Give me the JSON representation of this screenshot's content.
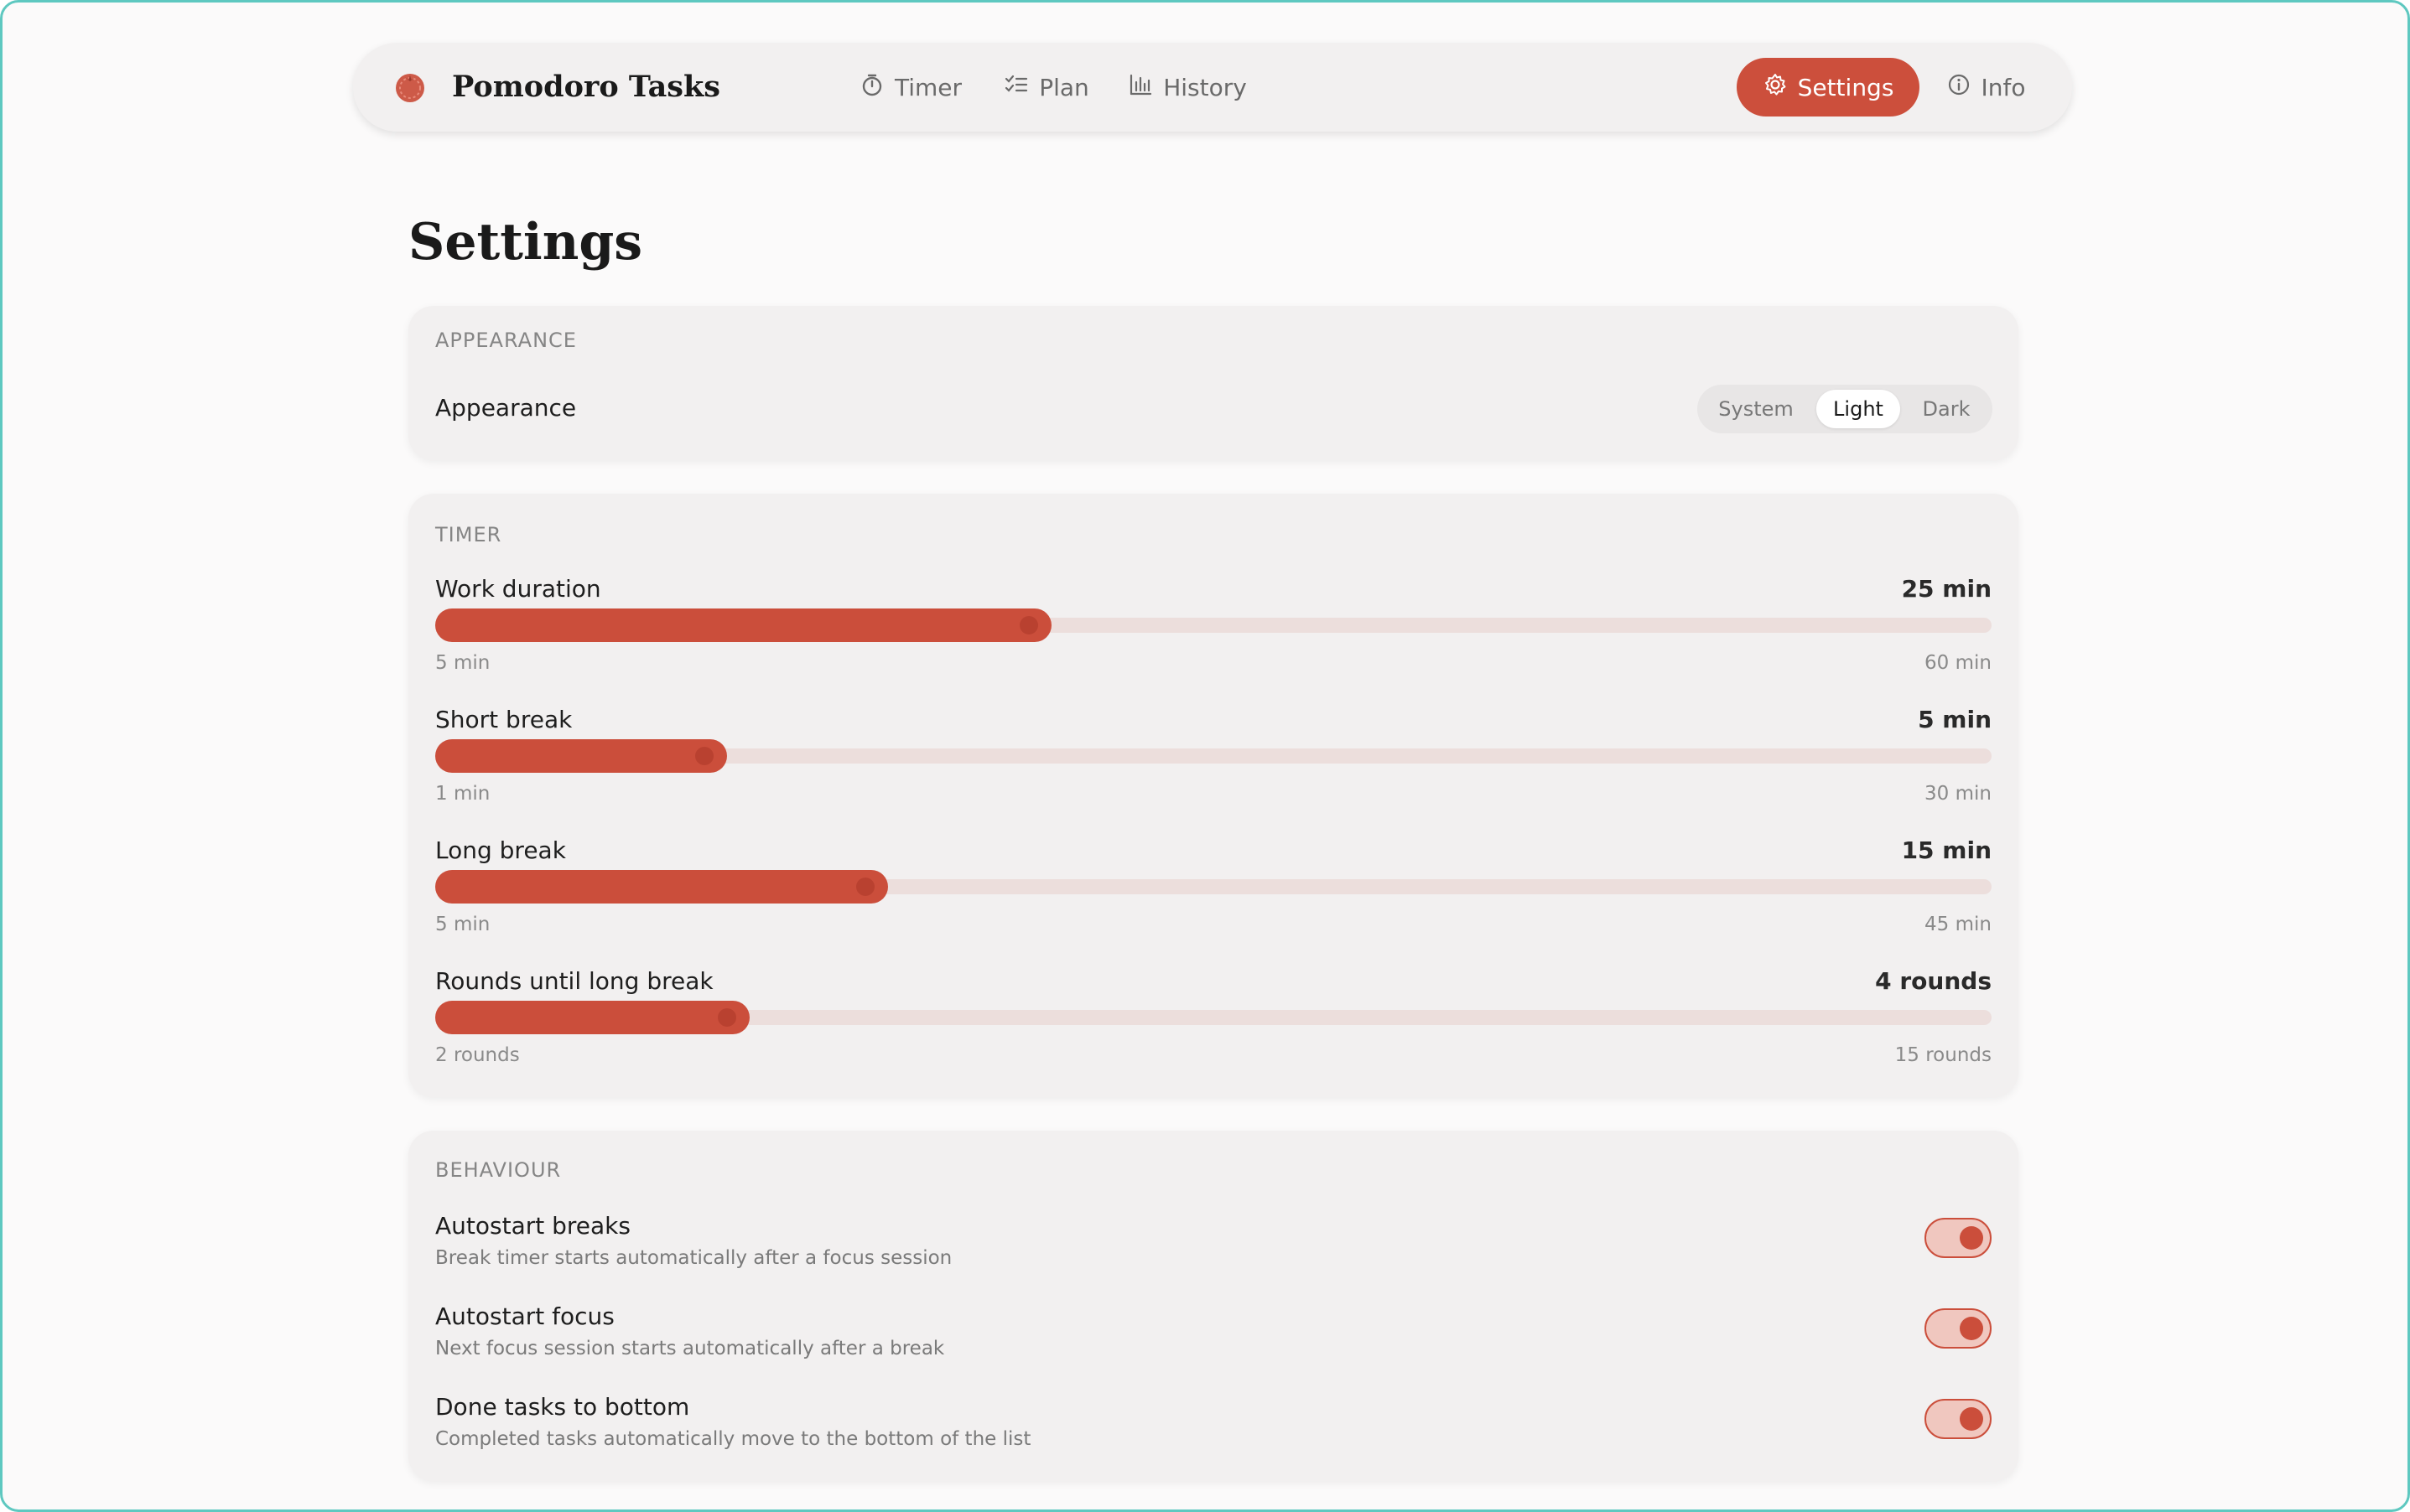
{
  "app": {
    "title": "Pomodoro Tasks",
    "accent_color": "#cc4f3c",
    "logo_icon": "tomato-icon"
  },
  "nav": {
    "items": [
      {
        "label": "Timer",
        "icon": "stopwatch-icon",
        "active": false
      },
      {
        "label": "Plan",
        "icon": "checklist-icon",
        "active": false
      },
      {
        "label": "History",
        "icon": "bar-chart-icon",
        "active": false
      },
      {
        "label": "Settings",
        "icon": "gear-icon",
        "active": true
      },
      {
        "label": "Info",
        "icon": "info-icon",
        "active": false
      }
    ]
  },
  "page": {
    "title": "Settings"
  },
  "appearance": {
    "section_label": "APPEARANCE",
    "row_label": "Appearance",
    "options": [
      "System",
      "Light",
      "Dark"
    ],
    "selected": "Light"
  },
  "timer": {
    "section_label": "TIMER",
    "sliders": [
      {
        "name": "Work duration",
        "value_label": "25 min",
        "min_label": "5 min",
        "max_label": "60 min",
        "min": 5,
        "max": 60,
        "value": 25
      },
      {
        "name": "Short break",
        "value_label": "5 min",
        "min_label": "1 min",
        "max_label": "30 min",
        "min": 1,
        "max": 30,
        "value": 5
      },
      {
        "name": "Long break",
        "value_label": "15 min",
        "min_label": "5 min",
        "max_label": "45 min",
        "min": 5,
        "max": 45,
        "value": 15
      },
      {
        "name": "Rounds until long break",
        "value_label": "4 rounds",
        "min_label": "2 rounds",
        "max_label": "15 rounds",
        "min": 2,
        "max": 15,
        "value": 4
      }
    ]
  },
  "behaviour": {
    "section_label": "BEHAVIOUR",
    "toggles": [
      {
        "title": "Autostart breaks",
        "description": "Break timer starts automatically after a focus session",
        "on": true
      },
      {
        "title": "Autostart focus",
        "description": "Next focus session starts automatically after a break",
        "on": true
      },
      {
        "title": "Done tasks to bottom",
        "description": "Completed tasks automatically move to the bottom of the list",
        "on": true
      }
    ]
  }
}
